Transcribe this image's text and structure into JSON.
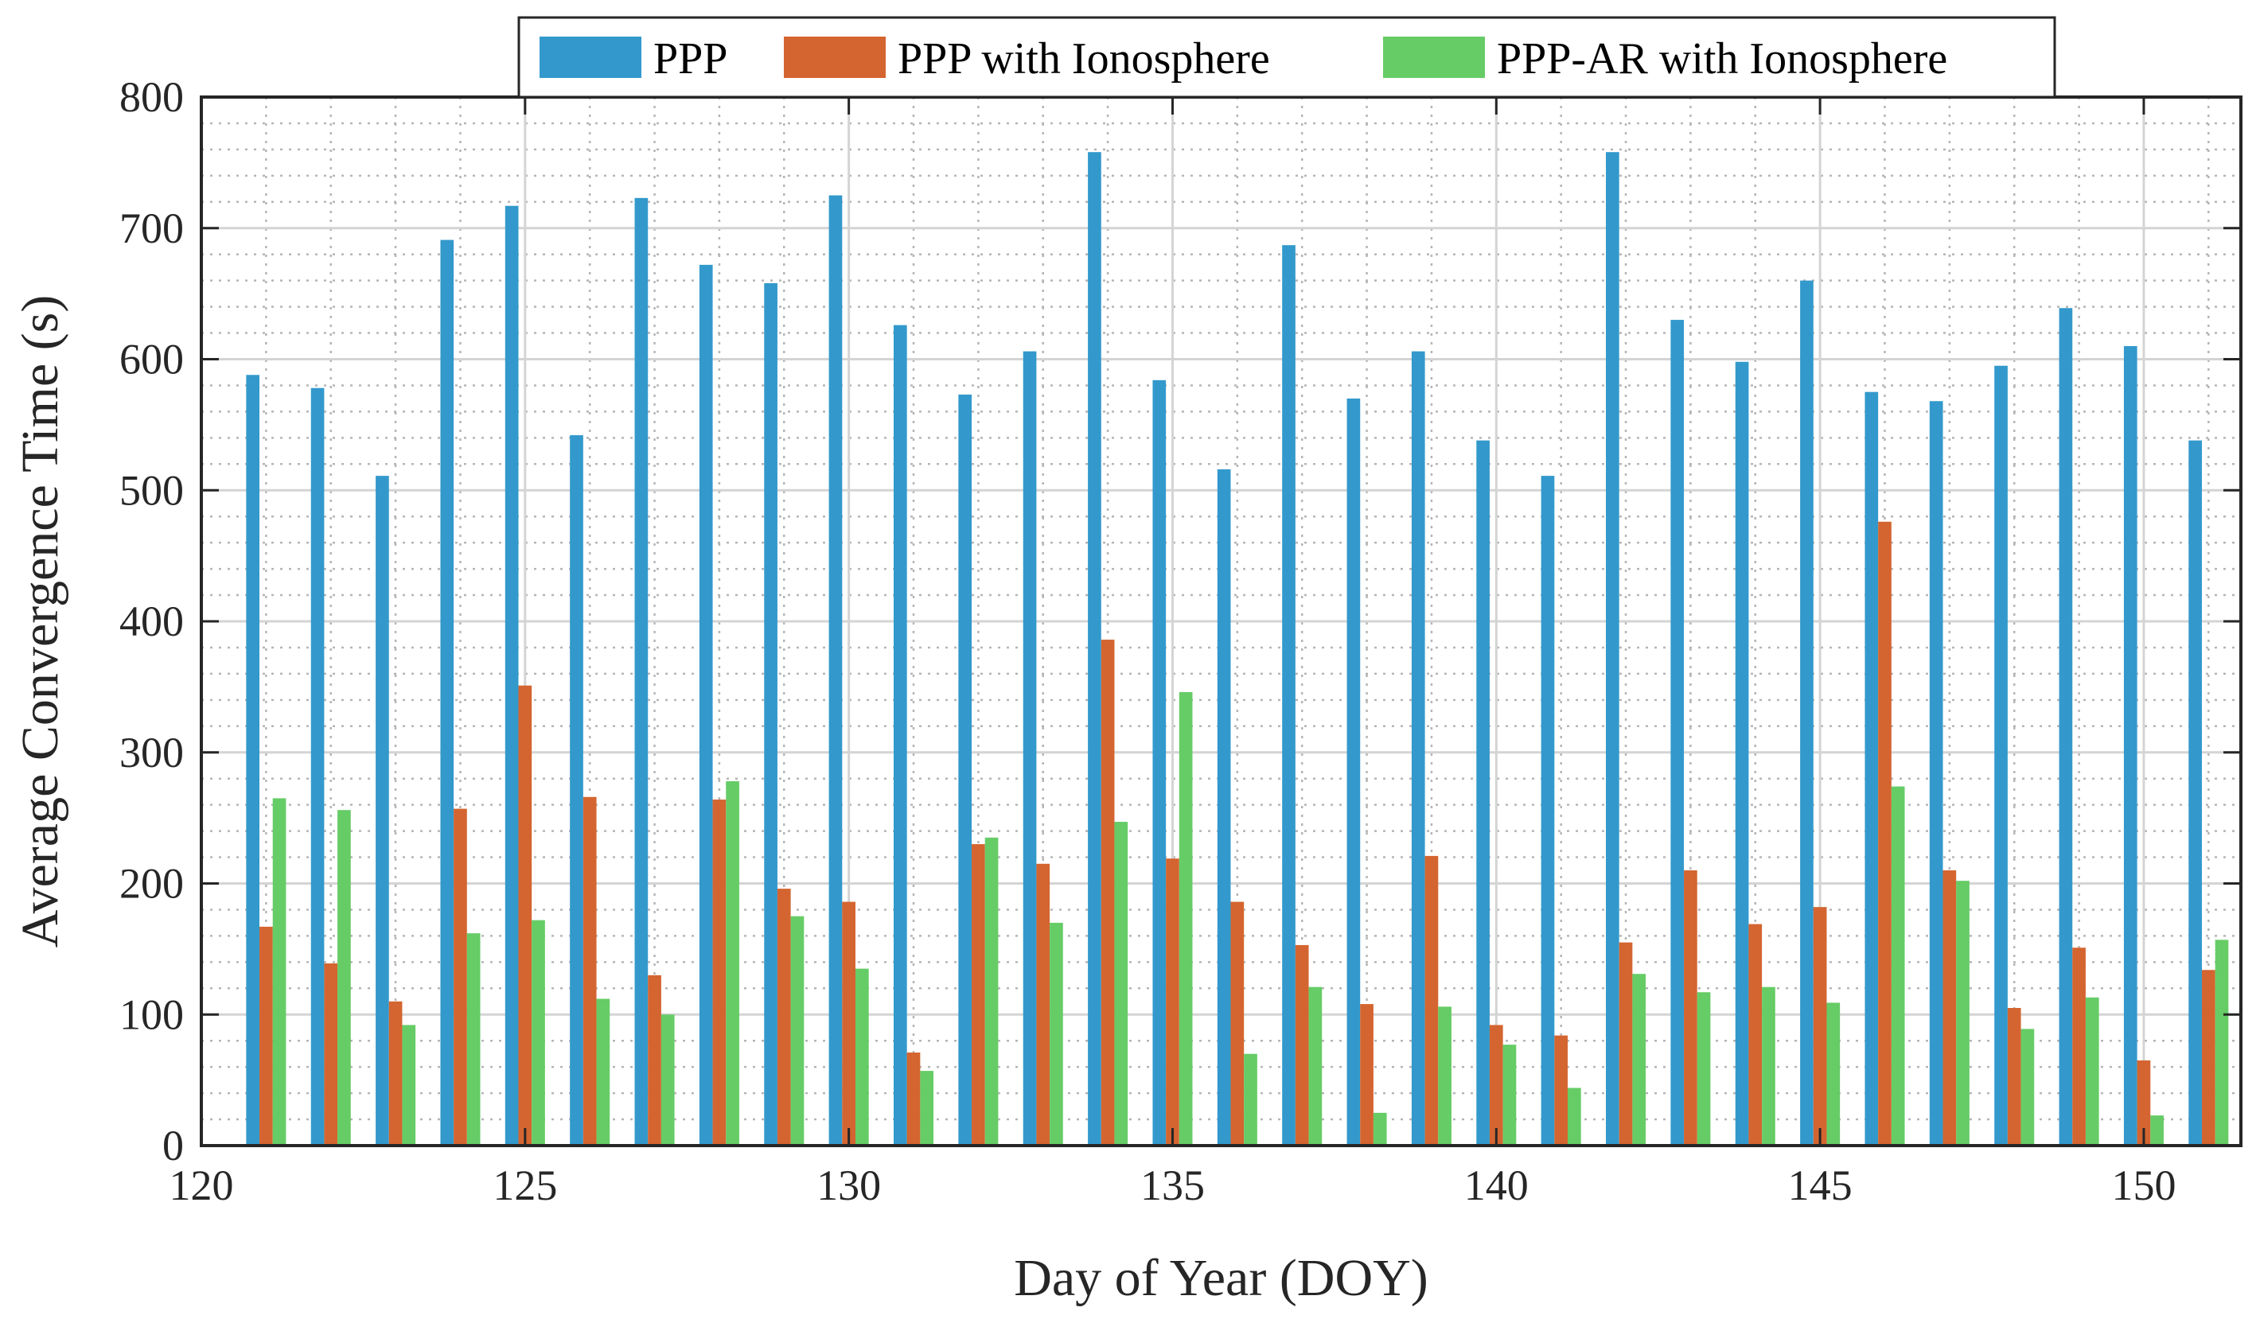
{
  "chart_data": {
    "type": "bar",
    "xlabel": "Day of Year (DOY)",
    "ylabel": "Average Convergence Time (s)",
    "xlim": [
      120,
      151.5
    ],
    "ylim": [
      0,
      800
    ],
    "xticks": [
      120,
      125,
      130,
      135,
      140,
      145,
      150
    ],
    "yticks": [
      0,
      100,
      200,
      300,
      400,
      500,
      600,
      700,
      800
    ],
    "grid": true,
    "minor_grid": true,
    "legend_placement": "top-center",
    "x": [
      121,
      122,
      123,
      124,
      125,
      126,
      127,
      128,
      129,
      130,
      131,
      132,
      133,
      134,
      135,
      136,
      137,
      138,
      139,
      140,
      141,
      142,
      143,
      144,
      145,
      146,
      147,
      148,
      149,
      150,
      151
    ],
    "series": [
      {
        "name": "PPP",
        "color": "#3399cc",
        "values": [
          588,
          578,
          511,
          691,
          717,
          542,
          723,
          672,
          658,
          725,
          626,
          573,
          606,
          758,
          584,
          516,
          687,
          570,
          606,
          538,
          511,
          758,
          630,
          598,
          660,
          575,
          568,
          595,
          639,
          610,
          538
        ]
      },
      {
        "name": "PPP with Ionosphere",
        "color": "#d46530",
        "values": [
          167,
          139,
          110,
          257,
          351,
          266,
          130,
          264,
          196,
          186,
          71,
          230,
          215,
          386,
          219,
          186,
          153,
          108,
          221,
          92,
          84,
          155,
          210,
          169,
          182,
          476,
          210,
          105,
          151,
          65,
          134
        ]
      },
      {
        "name": "PPP-AR with Ionosphere",
        "color": "#66cc66",
        "values": [
          265,
          256,
          92,
          162,
          172,
          112,
          100,
          278,
          175,
          135,
          57,
          235,
          170,
          247,
          346,
          70,
          121,
          25,
          106,
          77,
          44,
          131,
          117,
          121,
          109,
          274,
          202,
          89,
          113,
          23,
          157
        ]
      }
    ]
  }
}
